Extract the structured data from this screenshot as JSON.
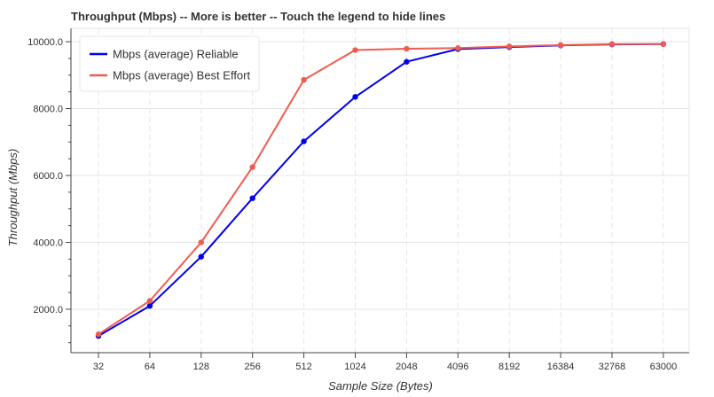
{
  "chart_data": {
    "type": "line",
    "title": "Throughput (Mbps) -- More is better -- Touch the legend to hide lines",
    "xlabel": "Sample Size (Bytes)",
    "ylabel": "Throughput (Mbps)",
    "categories": [
      "32",
      "64",
      "128",
      "256",
      "512",
      "1024",
      "2048",
      "4096",
      "8192",
      "16384",
      "32768",
      "63000"
    ],
    "ylim": [
      700,
      10400
    ],
    "yticks": [
      2000,
      4000,
      6000,
      8000,
      10000
    ],
    "ytick_labels": [
      "2000.0",
      "4000.0",
      "6000.0",
      "8000.0",
      "10000.0"
    ],
    "grid": true,
    "legend_position": "top-left",
    "series": [
      {
        "name": "Mbps (average) Reliable",
        "color": "#0000ee",
        "values": [
          1200,
          2100,
          3570,
          5320,
          7020,
          8350,
          9400,
          9780,
          9840,
          9890,
          9920,
          9930
        ]
      },
      {
        "name": "Mbps (average) Best Effort",
        "color": "#f05b4f",
        "values": [
          1250,
          2250,
          4000,
          6250,
          8860,
          9750,
          9790,
          9810,
          9860,
          9900,
          9930,
          9930
        ]
      }
    ]
  }
}
